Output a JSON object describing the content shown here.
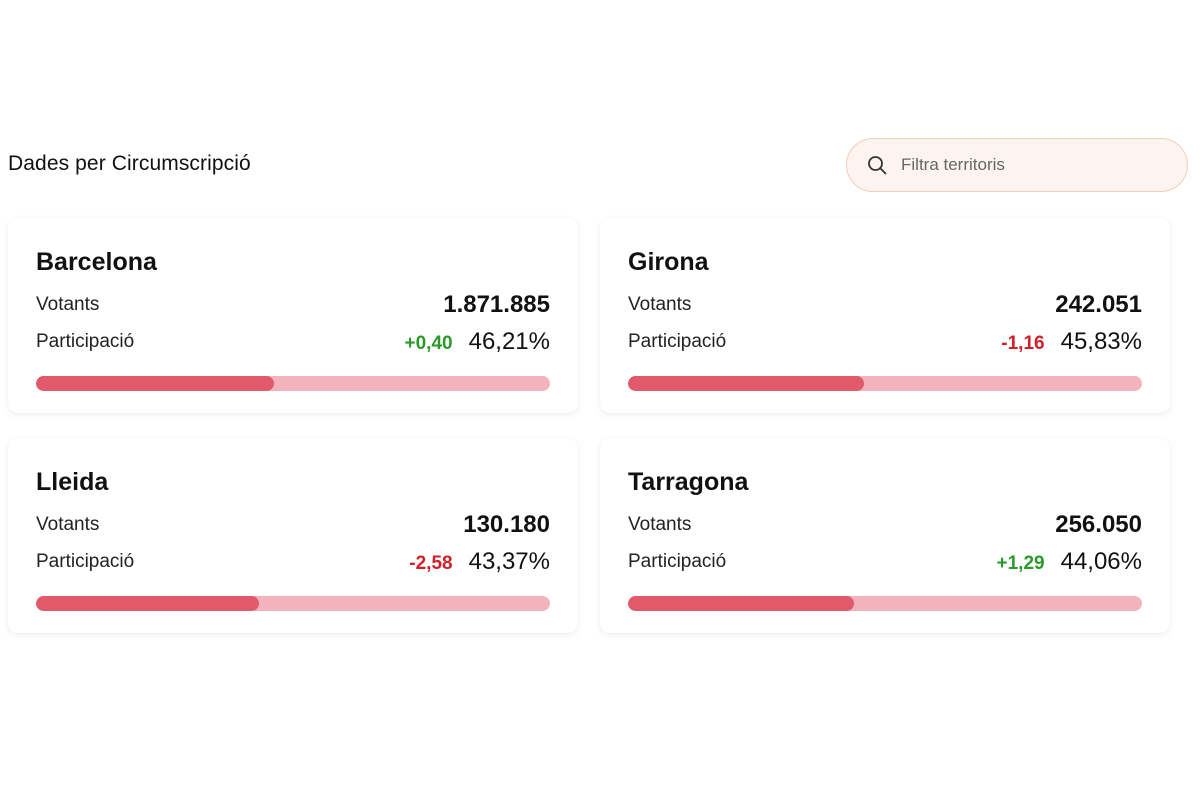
{
  "section": {
    "title": "Dades per Circumscripció"
  },
  "search": {
    "placeholder": "Filtra territoris",
    "icon": "search-icon"
  },
  "colors": {
    "positive": "#2b9a2b",
    "negative": "#d0212a",
    "bar_fill": "#e05a6b",
    "bar_track": "#f3b3bd"
  },
  "cards": [
    {
      "name": "Barcelona",
      "votants_label": "Votants",
      "votants": "1.871.885",
      "participacio_label": "Participació",
      "change": "+0,40",
      "change_sign": "positive",
      "participacio": "46,21%",
      "participacio_value": 46.21
    },
    {
      "name": "Girona",
      "votants_label": "Votants",
      "votants": "242.051",
      "participacio_label": "Participació",
      "change": "-1,16",
      "change_sign": "negative",
      "participacio": "45,83%",
      "participacio_value": 45.83
    },
    {
      "name": "Lleida",
      "votants_label": "Votants",
      "votants": "130.180",
      "participacio_label": "Participació",
      "change": "-2,58",
      "change_sign": "negative",
      "participacio": "43,37%",
      "participacio_value": 43.37
    },
    {
      "name": "Tarragona",
      "votants_label": "Votants",
      "votants": "256.050",
      "participacio_label": "Participació",
      "change": "+1,29",
      "change_sign": "positive",
      "participacio": "44,06%",
      "participacio_value": 44.06
    }
  ]
}
